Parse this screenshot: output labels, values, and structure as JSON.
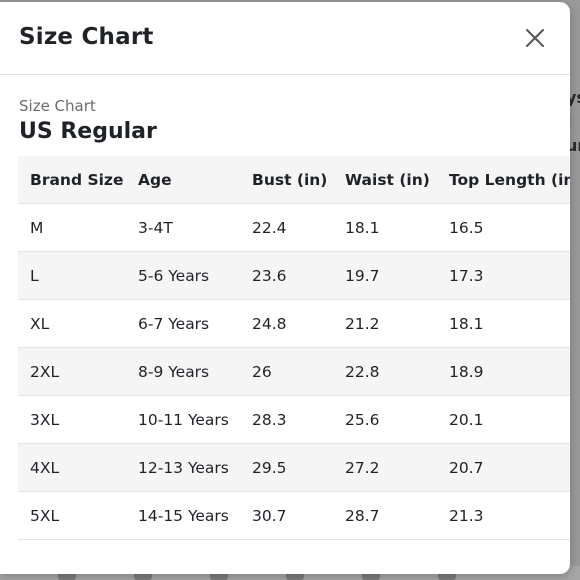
{
  "modal": {
    "title": "Size Chart",
    "close_icon": "close-icon",
    "chart_label": "Size Chart",
    "region": "US Regular"
  },
  "table": {
    "headers": [
      "Brand Size",
      "Age",
      "Bust (in)",
      "Waist (in)",
      "Top Length (in)"
    ],
    "rows": [
      [
        "M",
        "3-4T",
        "22.4",
        "18.1",
        "16.5"
      ],
      [
        "L",
        "5-6 Years",
        "23.6",
        "19.7",
        "17.3"
      ],
      [
        "XL",
        "6-7 Years",
        "24.8",
        "21.2",
        "18.1"
      ],
      [
        "2XL",
        "8-9 Years",
        "26",
        "22.8",
        "18.9"
      ],
      [
        "3XL",
        "10-11 Years",
        "28.3",
        "25.6",
        "20.1"
      ],
      [
        "4XL",
        "12-13 Years",
        "29.5",
        "27.2",
        "20.7"
      ],
      [
        "5XL",
        "14-15 Years",
        "30.7",
        "28.7",
        "21.3"
      ]
    ]
  },
  "background": {
    "right_text": [
      "ys",
      "l",
      "ur"
    ]
  },
  "colors": {
    "overlay": "#9a9a9a",
    "modal_bg": "#ffffff",
    "row_stripe": "#f5f5f5",
    "text": "#1f2328",
    "muted_text": "#6b6b6b"
  }
}
